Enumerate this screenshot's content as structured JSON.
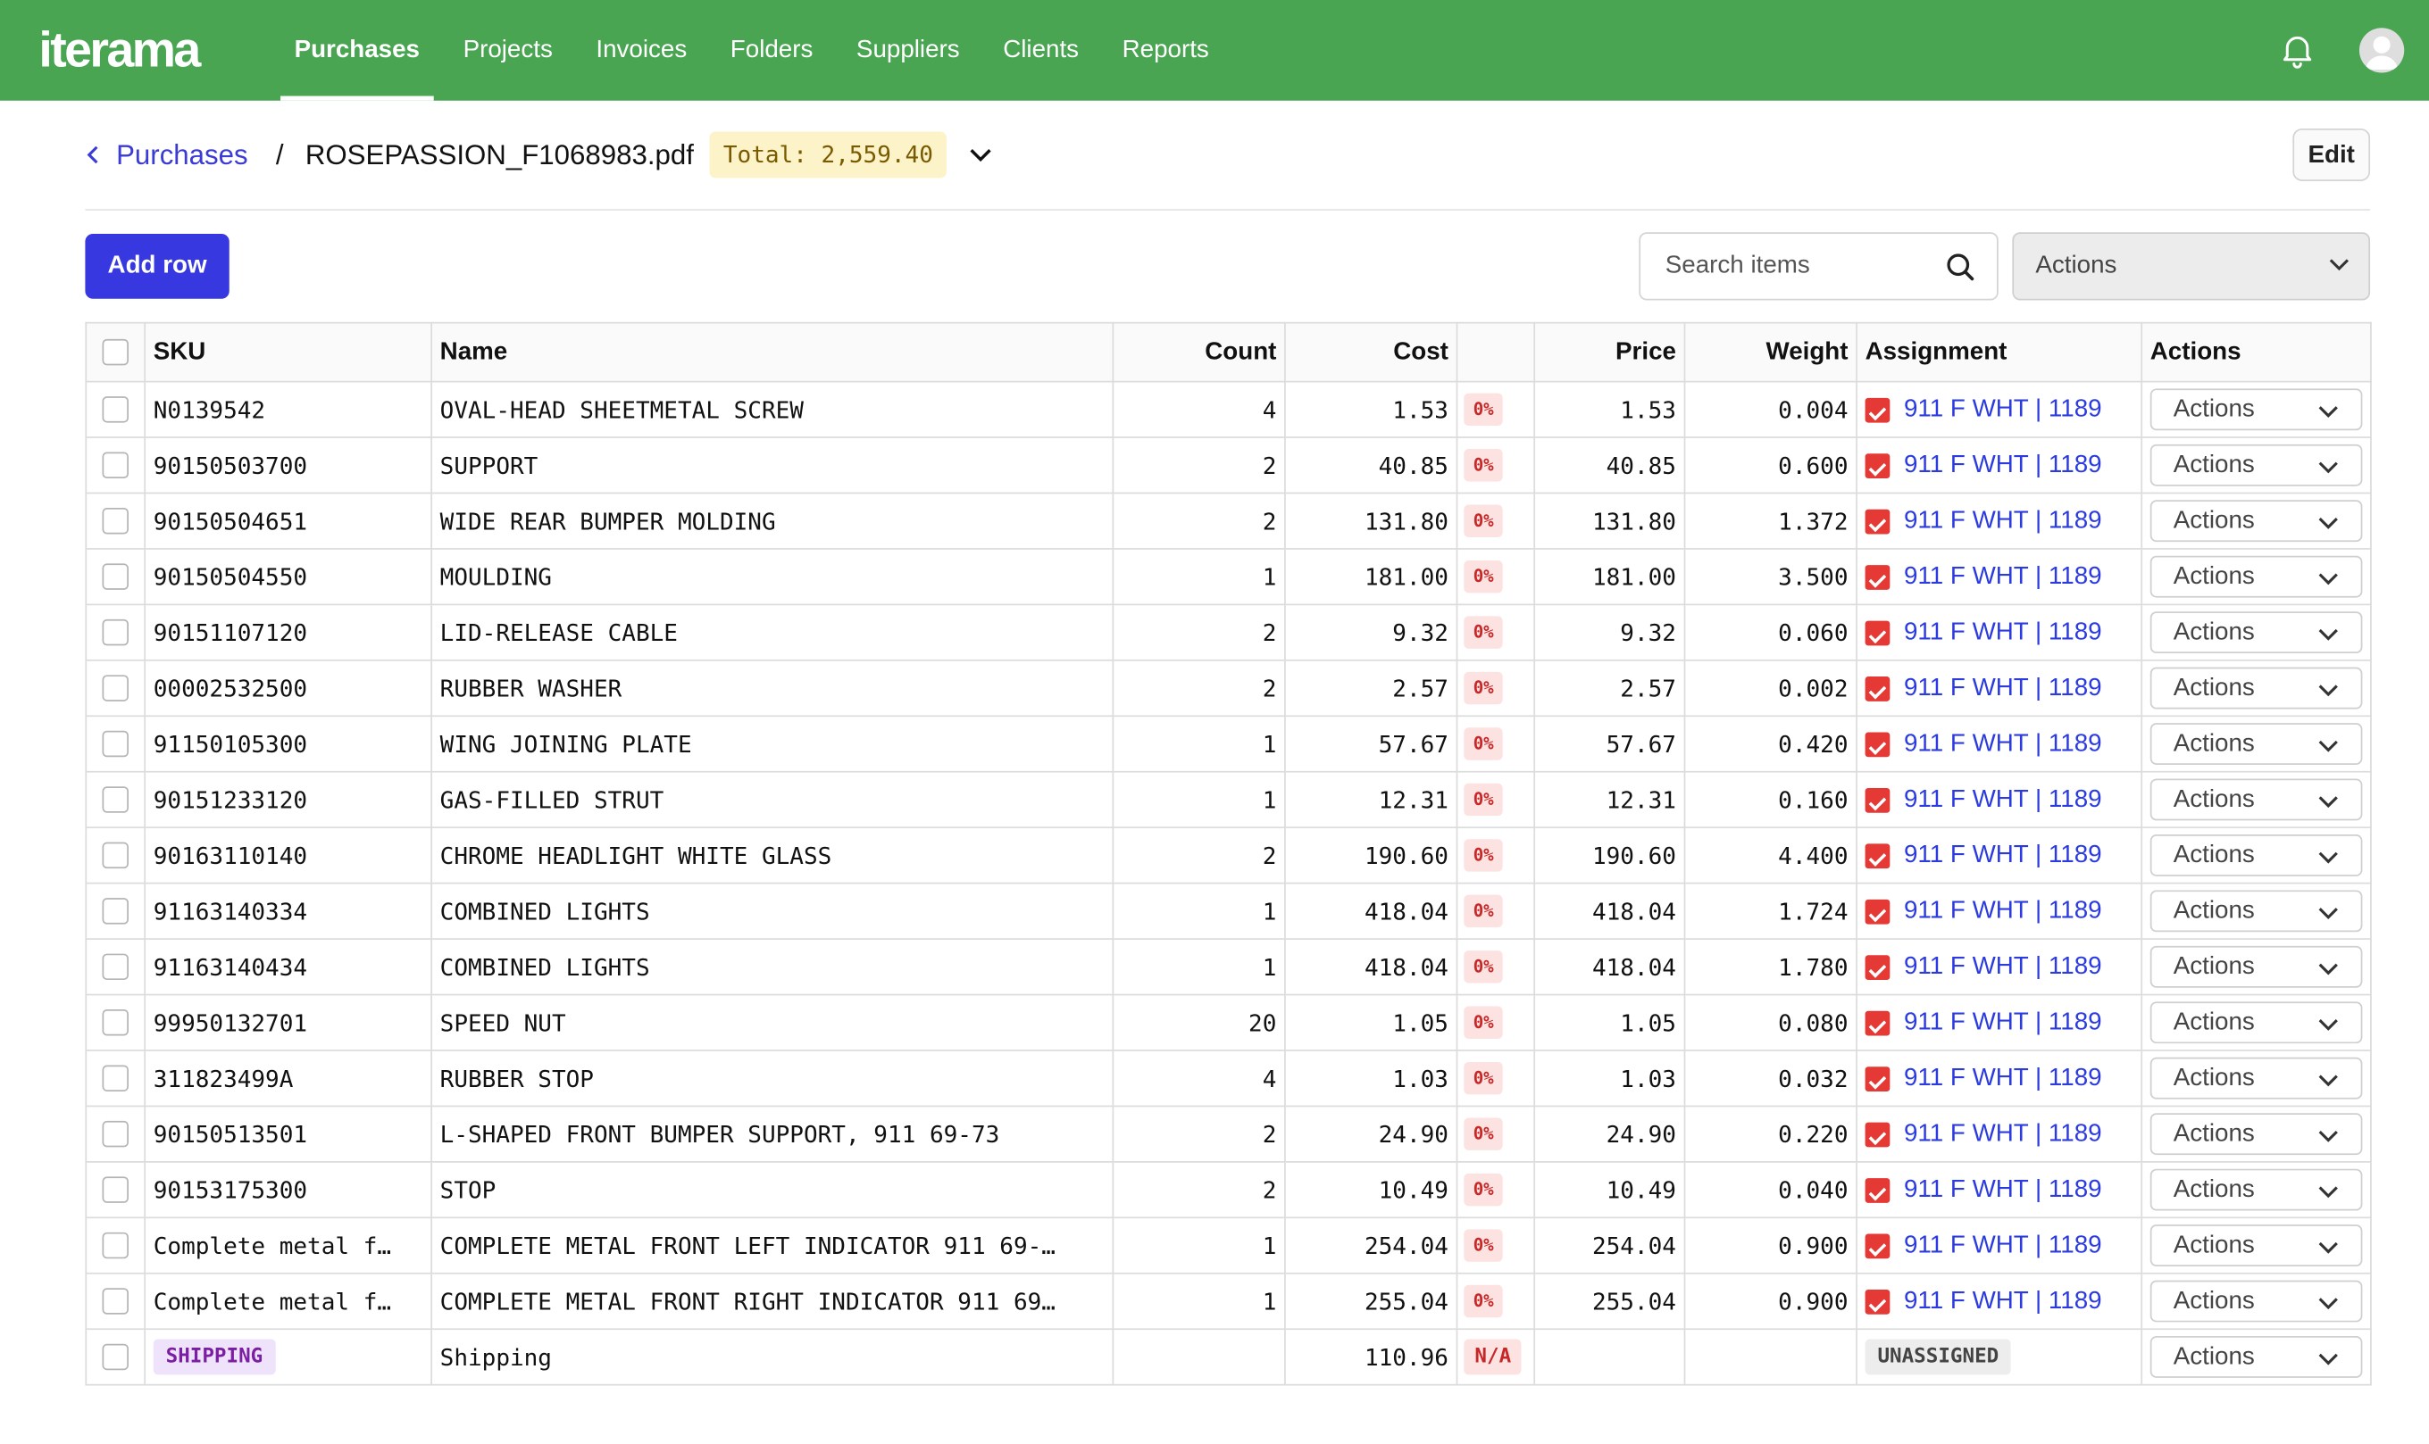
{
  "app": {
    "logo": "iterama"
  },
  "nav": {
    "items": [
      "Purchases",
      "Projects",
      "Invoices",
      "Folders",
      "Suppliers",
      "Clients",
      "Reports"
    ],
    "active": "Purchases"
  },
  "breadcrumb": {
    "back_label": "Purchases",
    "separator": "/",
    "file_name": "ROSEPASSION_F1068983.pdf",
    "total_label": "Total: 2,559.40"
  },
  "toolbar": {
    "edit_label": "Edit",
    "add_row_label": "Add row",
    "search_placeholder": "Search items",
    "actions_label": "Actions"
  },
  "table": {
    "headers": [
      "SKU",
      "Name",
      "Count",
      "Cost",
      "Price",
      "Weight",
      "Assignment",
      "Actions"
    ],
    "rows": [
      {
        "sku": "N0139542",
        "name": "OVAL-HEAD SHEETMETAL SCREW",
        "count": "4",
        "cost": "1.53",
        "pct": "0%",
        "price": "1.53",
        "weight": "0.004",
        "assignment": "911 F WHT | 1189",
        "actions": "Actions"
      },
      {
        "sku": "90150503700",
        "name": "SUPPORT",
        "count": "2",
        "cost": "40.85",
        "pct": "0%",
        "price": "40.85",
        "weight": "0.600",
        "assignment": "911 F WHT | 1189",
        "actions": "Actions"
      },
      {
        "sku": "90150504651",
        "name": "WIDE REAR BUMPER MOLDING",
        "count": "2",
        "cost": "131.80",
        "pct": "0%",
        "price": "131.80",
        "weight": "1.372",
        "assignment": "911 F WHT | 1189",
        "actions": "Actions"
      },
      {
        "sku": "90150504550",
        "name": "MOULDING",
        "count": "1",
        "cost": "181.00",
        "pct": "0%",
        "price": "181.00",
        "weight": "3.500",
        "assignment": "911 F WHT | 1189",
        "actions": "Actions"
      },
      {
        "sku": "90151107120",
        "name": "LID-RELEASE CABLE",
        "count": "2",
        "cost": "9.32",
        "pct": "0%",
        "price": "9.32",
        "weight": "0.060",
        "assignment": "911 F WHT | 1189",
        "actions": "Actions"
      },
      {
        "sku": "00002532500",
        "name": "RUBBER WASHER",
        "count": "2",
        "cost": "2.57",
        "pct": "0%",
        "price": "2.57",
        "weight": "0.002",
        "assignment": "911 F WHT | 1189",
        "actions": "Actions"
      },
      {
        "sku": "91150105300",
        "name": "WING JOINING PLATE",
        "count": "1",
        "cost": "57.67",
        "pct": "0%",
        "price": "57.67",
        "weight": "0.420",
        "assignment": "911 F WHT | 1189",
        "actions": "Actions"
      },
      {
        "sku": "90151233120",
        "name": "GAS-FILLED STRUT",
        "count": "1",
        "cost": "12.31",
        "pct": "0%",
        "price": "12.31",
        "weight": "0.160",
        "assignment": "911 F WHT | 1189",
        "actions": "Actions"
      },
      {
        "sku": "90163110140",
        "name": "CHROME HEADLIGHT WHITE GLASS",
        "count": "2",
        "cost": "190.60",
        "pct": "0%",
        "price": "190.60",
        "weight": "4.400",
        "assignment": "911 F WHT | 1189",
        "actions": "Actions"
      },
      {
        "sku": "91163140334",
        "name": "COMBINED LIGHTS",
        "count": "1",
        "cost": "418.04",
        "pct": "0%",
        "price": "418.04",
        "weight": "1.724",
        "assignment": "911 F WHT | 1189",
        "actions": "Actions"
      },
      {
        "sku": "91163140434",
        "name": "COMBINED LIGHTS",
        "count": "1",
        "cost": "418.04",
        "pct": "0%",
        "price": "418.04",
        "weight": "1.780",
        "assignment": "911 F WHT | 1189",
        "actions": "Actions"
      },
      {
        "sku": "99950132701",
        "name": "SPEED NUT",
        "count": "20",
        "cost": "1.05",
        "pct": "0%",
        "price": "1.05",
        "weight": "0.080",
        "assignment": "911 F WHT | 1189",
        "actions": "Actions"
      },
      {
        "sku": "311823499A",
        "name": "RUBBER STOP",
        "count": "4",
        "cost": "1.03",
        "pct": "0%",
        "price": "1.03",
        "weight": "0.032",
        "assignment": "911 F WHT | 1189",
        "actions": "Actions"
      },
      {
        "sku": "90150513501",
        "name": "L-SHAPED FRONT BUMPER SUPPORT, 911 69-73",
        "count": "2",
        "cost": "24.90",
        "pct": "0%",
        "price": "24.90",
        "weight": "0.220",
        "assignment": "911 F WHT | 1189",
        "actions": "Actions"
      },
      {
        "sku": "90153175300",
        "name": "STOP",
        "count": "2",
        "cost": "10.49",
        "pct": "0%",
        "price": "10.49",
        "weight": "0.040",
        "assignment": "911 F WHT | 1189",
        "actions": "Actions"
      },
      {
        "sku": "Complete metal f…",
        "name": "COMPLETE METAL FRONT LEFT INDICATOR 911 69-…",
        "count": "1",
        "cost": "254.04",
        "pct": "0%",
        "price": "254.04",
        "weight": "0.900",
        "assignment": "911 F WHT | 1189",
        "actions": "Actions"
      },
      {
        "sku": "Complete metal f…",
        "name": "COMPLETE METAL FRONT RIGHT INDICATOR 911 69…",
        "count": "1",
        "cost": "255.04",
        "pct": "0%",
        "price": "255.04",
        "weight": "0.900",
        "assignment": "911 F WHT | 1189",
        "actions": "Actions"
      }
    ],
    "shipping_row": {
      "sku_badge": "SHIPPING",
      "name": "Shipping",
      "cost": "110.96",
      "pct_badge": "N/A",
      "assignment_badge": "UNASSIGNED",
      "actions": "Actions"
    }
  },
  "colors": {
    "topbar": "#4aa552",
    "primary_button": "#3838e0",
    "link": "#2b3be0",
    "total_badge_bg": "#fdf3c8",
    "pct_badge_bg": "#fde2e2",
    "shipping_badge_bg": "#efe3fb"
  }
}
